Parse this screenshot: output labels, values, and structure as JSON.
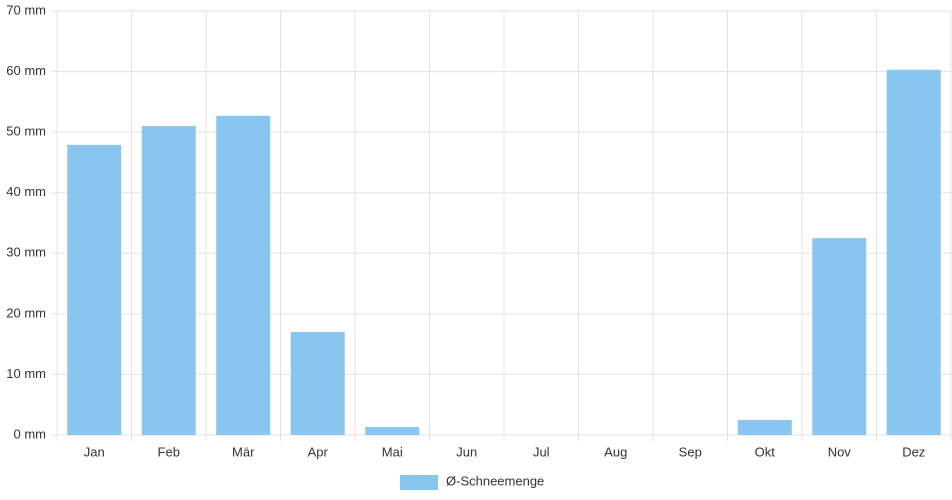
{
  "chart_data": {
    "type": "bar",
    "categories": [
      "Jan",
      "Feb",
      "Mär",
      "Apr",
      "Mai",
      "Jun",
      "Jul",
      "Aug",
      "Sep",
      "Okt",
      "Nov",
      "Dez"
    ],
    "series": [
      {
        "name": "Ø-Schneemenge",
        "color": "#88c6f0",
        "values": [
          47.9,
          51.0,
          52.7,
          17.0,
          1.3,
          0,
          0,
          0,
          0,
          2.5,
          32.5,
          60.3
        ]
      }
    ],
    "ylim": [
      0,
      70
    ],
    "yticks": [
      {
        "value": 0,
        "label": "0 mm"
      },
      {
        "value": 10,
        "label": "10 mm"
      },
      {
        "value": 20,
        "label": "20 mm"
      },
      {
        "value": 30,
        "label": "30 mm"
      },
      {
        "value": 40,
        "label": "40 mm"
      },
      {
        "value": 50,
        "label": "50 mm"
      },
      {
        "value": 60,
        "label": "60 mm"
      },
      {
        "value": 70,
        "label": "70 mm"
      }
    ],
    "grid": true,
    "legend": "bottom"
  }
}
